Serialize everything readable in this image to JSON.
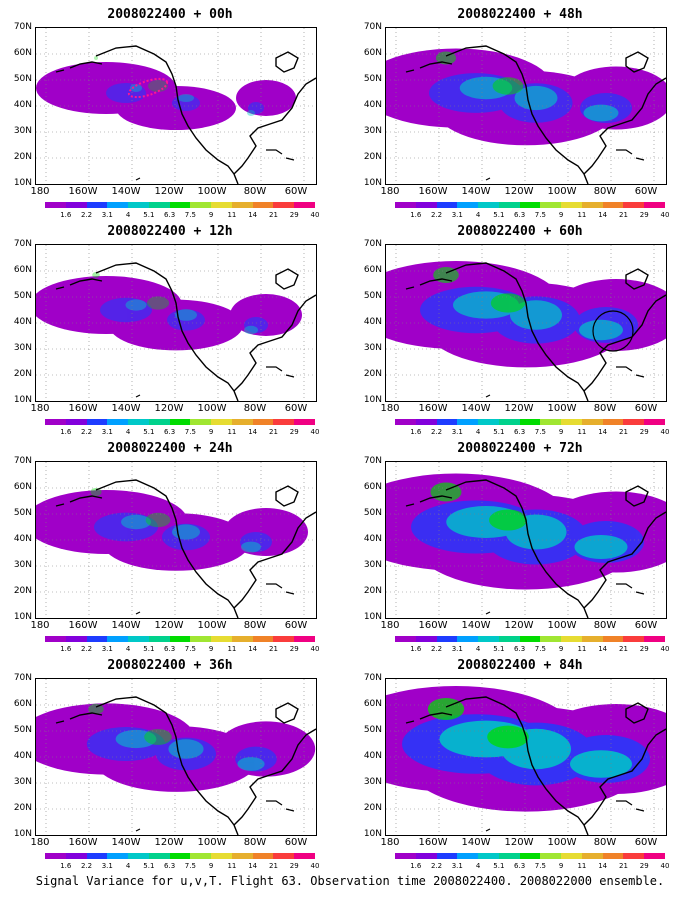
{
  "caption": "Signal Variance for u,v,T. Flight 63. Observation time 2008022400. 2008022000 ensemble.",
  "lat_labels": [
    "70N",
    "60N",
    "50N",
    "40N",
    "30N",
    "20N",
    "10N"
  ],
  "lon_labels": [
    "180",
    "160W",
    "140W",
    "120W",
    "100W",
    "80W",
    "60W"
  ],
  "colorbar": {
    "labels": [
      "1.6",
      "2.2",
      "3.1",
      "4",
      "5.1",
      "6.3",
      "7.5",
      "9",
      "11",
      "14",
      "21",
      "29",
      "40"
    ],
    "colors": [
      "#a000c8",
      "#8200dc",
      "#1e3cff",
      "#00a0ff",
      "#00c8c8",
      "#00d28c",
      "#00dc00",
      "#a0e632",
      "#e6dc32",
      "#e6af2d",
      "#f08228",
      "#fa3c3c",
      "#f00082"
    ]
  },
  "panels": [
    {
      "title": "2008022400 + 00h",
      "intensity": 0.0
    },
    {
      "title": "2008022400 + 48h",
      "intensity": 0.45
    },
    {
      "title": "2008022400 + 12h",
      "intensity": 0.1
    },
    {
      "title": "2008022400 + 60h",
      "intensity": 0.6
    },
    {
      "title": "2008022400 + 24h",
      "intensity": 0.2
    },
    {
      "title": "2008022400 + 72h",
      "intensity": 0.75
    },
    {
      "title": "2008022400 + 36h",
      "intensity": 0.32
    },
    {
      "title": "2008022400 + 84h",
      "intensity": 0.9
    }
  ]
}
